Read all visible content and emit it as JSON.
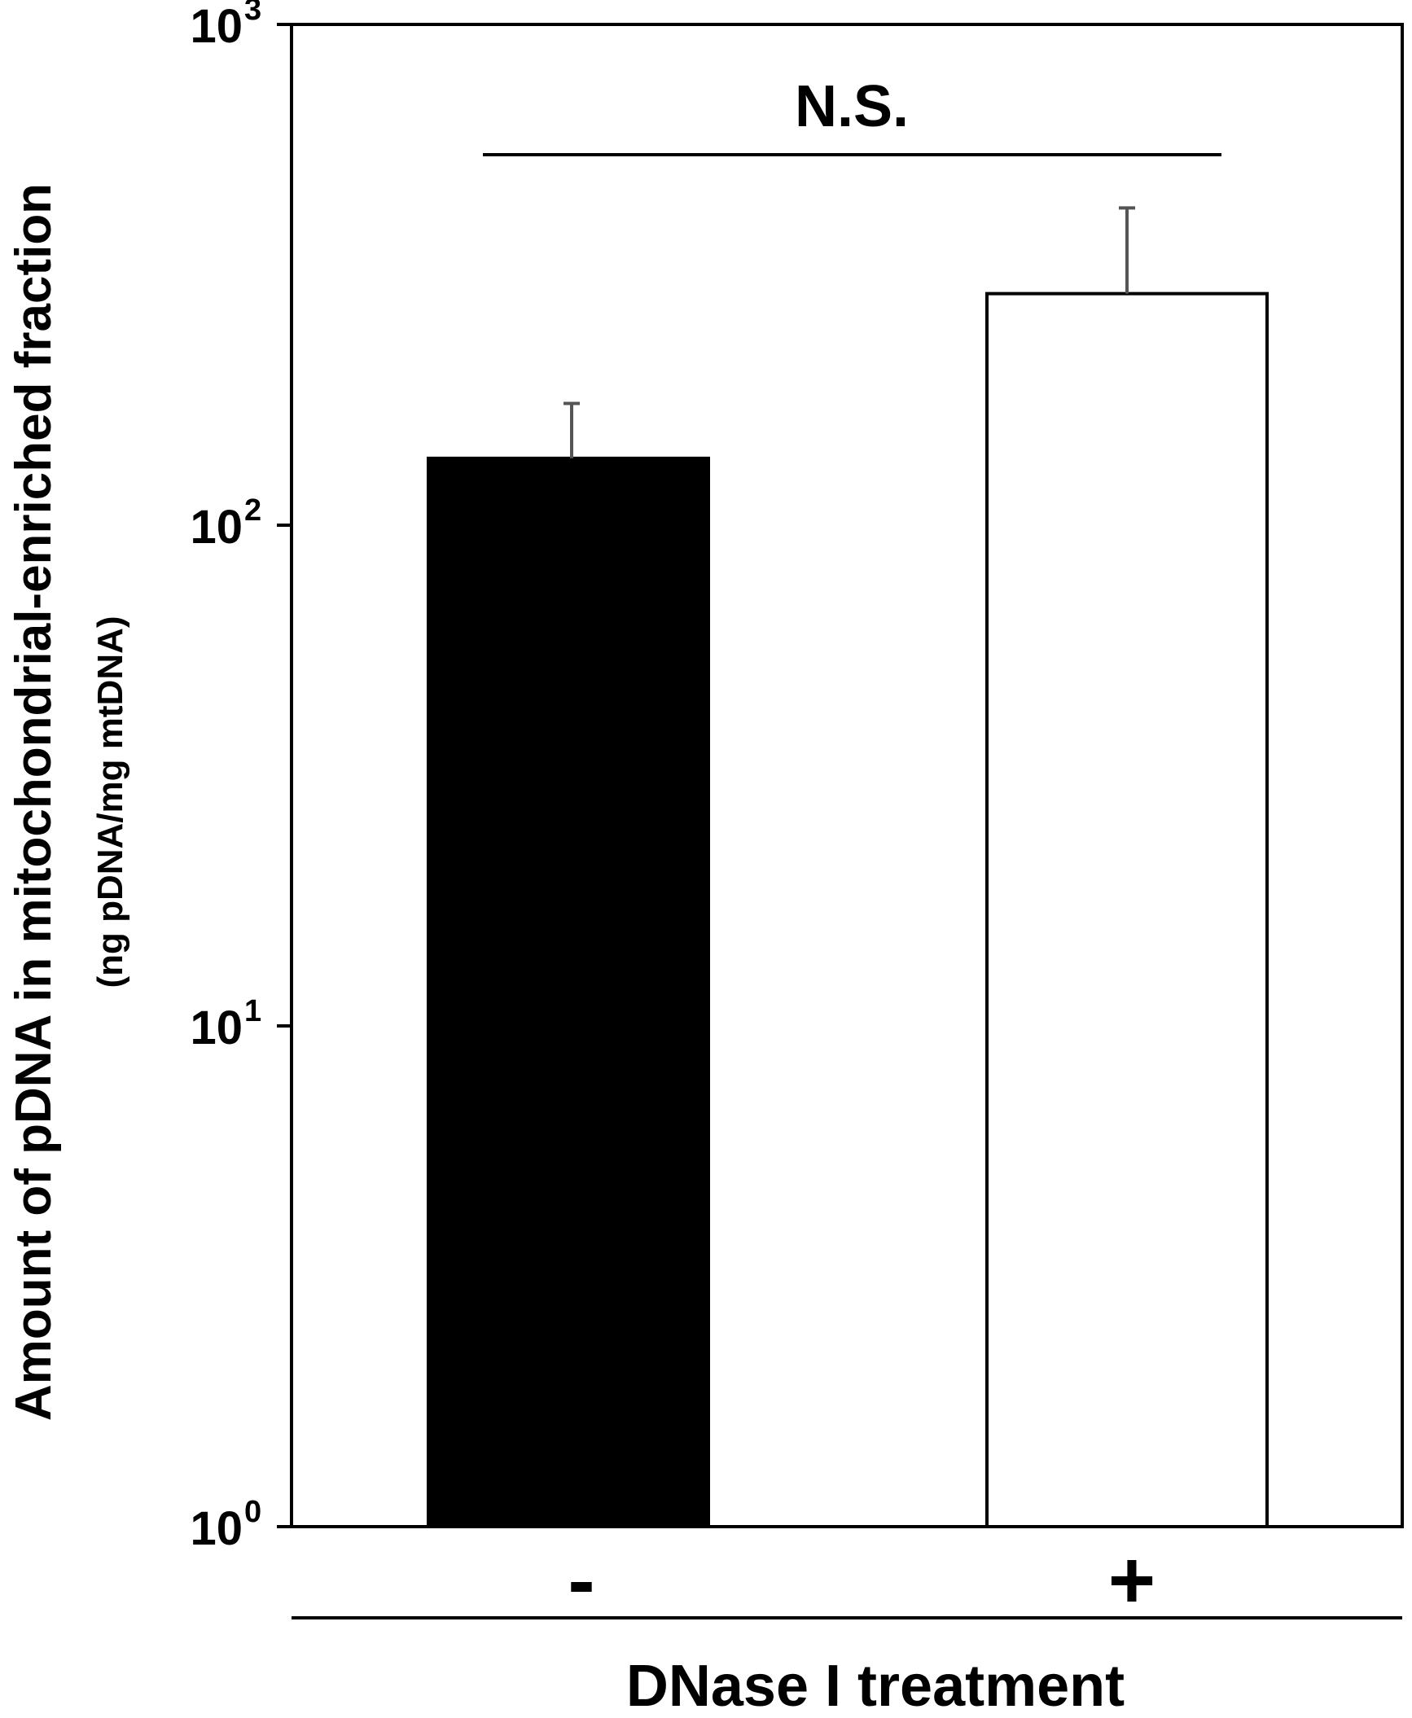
{
  "chart_data": {
    "type": "bar",
    "categories": [
      "-",
      "+"
    ],
    "values": [
      136,
      290
    ],
    "errors": [
      39,
      140
    ],
    "bar_colors": [
      "#000000",
      "#ffffff"
    ],
    "error_bar_color": "#555555",
    "xlabel": "DNase I treatment",
    "ylabel": "Amount of pDNA in mitochondrial-enriched fraction",
    "ylabel_unit": "(ng pDNA/mg mtDNA)",
    "yscale": "log",
    "ylim": [
      1,
      1000
    ],
    "yticks": [
      {
        "base": "10",
        "exp": "0",
        "value": 1
      },
      {
        "base": "10",
        "exp": "1",
        "value": 10
      },
      {
        "base": "10",
        "exp": "2",
        "value": 100
      },
      {
        "base": "10",
        "exp": "3",
        "value": 1000
      }
    ],
    "annotation": "N.S.",
    "grid": false
  }
}
